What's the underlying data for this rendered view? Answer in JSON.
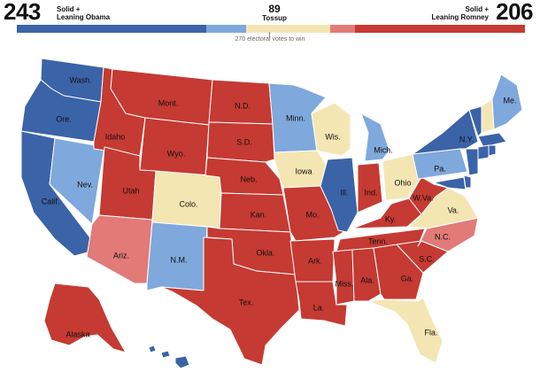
{
  "header": {
    "obama_count": "243",
    "obama_label": "Solid +\nLeaning Obama",
    "tossup_count": "89",
    "tossup_label": "Tossup",
    "romney_label": "Solid +\nLeaning Romney",
    "romney_count": "206",
    "threshold_text": "270 electoral votes to win"
  },
  "colors": {
    "solid_obama": "#3b63a8",
    "lean_obama": "#7fa8dc",
    "tossup": "#f4e6b3",
    "lean_romney": "#e27a78",
    "solid_romney": "#c53a32"
  },
  "legend_bar": [
    {
      "category": "solid_obama",
      "electoral_votes": 201
    },
    {
      "category": "lean_obama",
      "electoral_votes": 42
    },
    {
      "category": "tossup",
      "electoral_votes": 89
    },
    {
      "category": "lean_romney",
      "electoral_votes": 26
    },
    {
      "category": "solid_romney",
      "electoral_votes": 180
    }
  ],
  "states": [
    {
      "id": "WA",
      "label": "Wash.",
      "category": "solid_obama"
    },
    {
      "id": "OR",
      "label": "Ore.",
      "category": "solid_obama"
    },
    {
      "id": "CA",
      "label": "Calif.",
      "category": "solid_obama"
    },
    {
      "id": "NV",
      "label": "Nev.",
      "category": "lean_obama"
    },
    {
      "id": "ID",
      "label": "Idaho",
      "category": "solid_romney"
    },
    {
      "id": "MT",
      "label": "Mont.",
      "category": "solid_romney"
    },
    {
      "id": "WY",
      "label": "Wyo.",
      "category": "solid_romney"
    },
    {
      "id": "UT",
      "label": "Utah",
      "category": "solid_romney"
    },
    {
      "id": "AZ",
      "label": "Ariz.",
      "category": "lean_romney"
    },
    {
      "id": "CO",
      "label": "Colo.",
      "category": "tossup"
    },
    {
      "id": "NM",
      "label": "N.M.",
      "category": "lean_obama"
    },
    {
      "id": "ND",
      "label": "N.D.",
      "category": "solid_romney"
    },
    {
      "id": "SD",
      "label": "S.D.",
      "category": "solid_romney"
    },
    {
      "id": "NE",
      "label": "Neb.",
      "category": "solid_romney"
    },
    {
      "id": "KS",
      "label": "Kan.",
      "category": "solid_romney"
    },
    {
      "id": "OK",
      "label": "Okla.",
      "category": "solid_romney"
    },
    {
      "id": "TX",
      "label": "Tex.",
      "category": "solid_romney"
    },
    {
      "id": "MN",
      "label": "Minn.",
      "category": "lean_obama"
    },
    {
      "id": "IA",
      "label": "Iowa",
      "category": "tossup"
    },
    {
      "id": "MO",
      "label": "Mo.",
      "category": "solid_romney"
    },
    {
      "id": "AR",
      "label": "Ark.",
      "category": "solid_romney"
    },
    {
      "id": "LA",
      "label": "La.",
      "category": "solid_romney"
    },
    {
      "id": "WI",
      "label": "Wis.",
      "category": "tossup"
    },
    {
      "id": "IL",
      "label": "Ill.",
      "category": "solid_obama"
    },
    {
      "id": "MI",
      "label": "Mich.",
      "category": "lean_obama"
    },
    {
      "id": "IN",
      "label": "Ind.",
      "category": "solid_romney"
    },
    {
      "id": "OH",
      "label": "Ohio",
      "category": "tossup"
    },
    {
      "id": "KY",
      "label": "Ky.",
      "category": "solid_romney"
    },
    {
      "id": "TN",
      "label": "Tenn.",
      "category": "solid_romney"
    },
    {
      "id": "MS",
      "label": "Miss.",
      "category": "solid_romney"
    },
    {
      "id": "AL",
      "label": "Ala.",
      "category": "solid_romney"
    },
    {
      "id": "GA",
      "label": "Ga.",
      "category": "solid_romney"
    },
    {
      "id": "FL",
      "label": "Fla.",
      "category": "tossup"
    },
    {
      "id": "SC",
      "label": "S.C.",
      "category": "solid_romney"
    },
    {
      "id": "NC",
      "label": "N.C.",
      "category": "lean_romney"
    },
    {
      "id": "VA",
      "label": "Va.",
      "category": "tossup"
    },
    {
      "id": "WV",
      "label": "W.Va.",
      "category": "solid_romney"
    },
    {
      "id": "PA",
      "label": "Pa.",
      "category": "lean_obama"
    },
    {
      "id": "NY",
      "label": "N.Y.",
      "category": "solid_obama"
    },
    {
      "id": "NJ",
      "label": "",
      "category": "solid_obama"
    },
    {
      "id": "DE",
      "label": "",
      "category": "solid_obama"
    },
    {
      "id": "MD",
      "label": "",
      "category": "solid_obama"
    },
    {
      "id": "VT",
      "label": "",
      "category": "solid_obama"
    },
    {
      "id": "NH",
      "label": "",
      "category": "tossup"
    },
    {
      "id": "ME",
      "label": "Me.",
      "category": "lean_obama"
    },
    {
      "id": "MA",
      "label": "",
      "category": "solid_obama"
    },
    {
      "id": "CT",
      "label": "",
      "category": "solid_obama"
    },
    {
      "id": "RI",
      "label": "",
      "category": "solid_obama"
    },
    {
      "id": "AK",
      "label": "Alaska",
      "category": "solid_romney"
    },
    {
      "id": "HI",
      "label": "",
      "category": "solid_obama"
    }
  ]
}
